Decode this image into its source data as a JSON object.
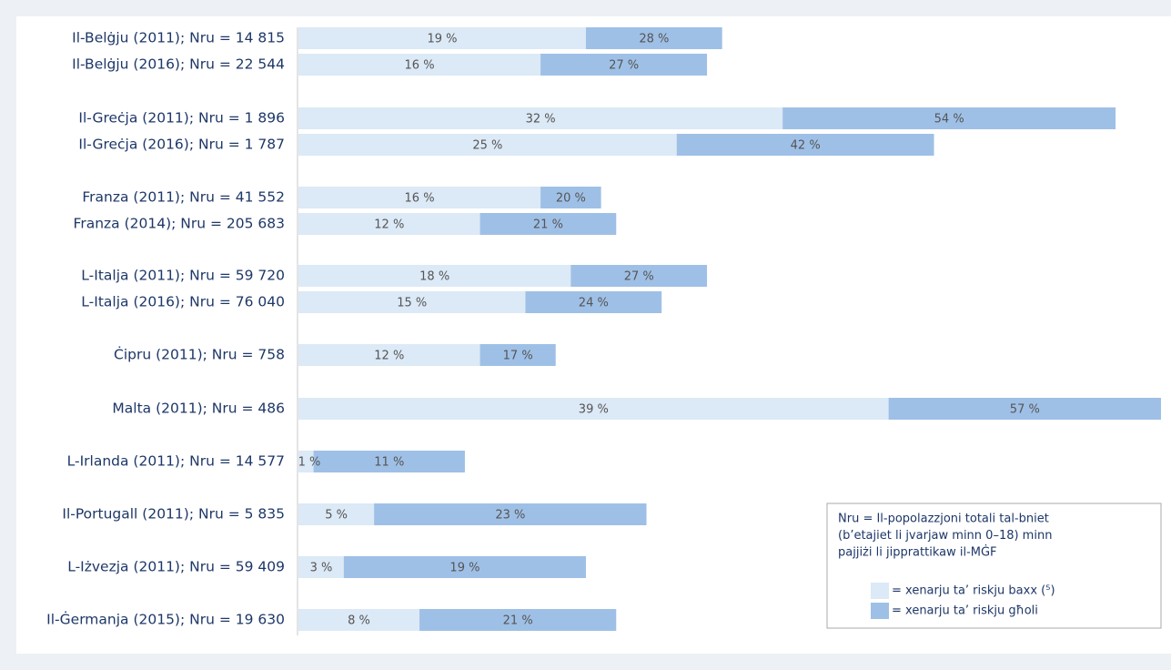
{
  "chart_data": {
    "type": "bar",
    "categories": [
      "Il-Belġju (2011); Nru = 14 815",
      "Il-Belġju (2016); Nru = 22 544",
      "Il-Greċja (2011); Nru = 1 896",
      "Il-Greċja (2016); Nru = 1 787",
      "Franza (2011); Nru = 41 552",
      "Franza (2014); Nru = 205 683",
      "L-Italja (2011); Nru = 59 720",
      "L-Italja (2016); Nru = 76 040",
      "Ċipru (2011); Nru = 758",
      "Malta (2011); Nru = 486",
      "L-Irlanda (2011); Nru = 14 577",
      "Il-Portugall (2011); Nru = 5 835",
      "L-Iżvezja (2011); Nru = 59 409",
      "Il-Ġermanja (2015); Nru = 19 630"
    ],
    "series": [
      {
        "name": "= xenarju ta’ riskju baxx (⁵)",
        "color": "#dce9f6",
        "values": [
          19,
          16,
          32,
          25,
          16,
          12,
          18,
          15,
          12,
          39,
          1,
          5,
          3,
          8
        ],
        "value_labels": [
          "19 %",
          "16 %",
          "32 %",
          "25 %",
          "16 %",
          "12 %",
          "18 %",
          "15 %",
          "12 %",
          "39 %",
          "1 %",
          "5 %",
          "3 %",
          "8 %"
        ]
      },
      {
        "name": "= xenarju ta’ riskju għoli",
        "color": "#9fc0e6",
        "values": [
          28,
          27,
          54,
          42,
          20,
          21,
          27,
          24,
          17,
          57,
          11,
          23,
          19,
          21
        ],
        "value_labels": [
          "28 %",
          "27 %",
          "54 %",
          "42 %",
          "20 %",
          "21 %",
          "27 %",
          "24 %",
          "17 %",
          "57 %",
          "11 %",
          "23 %",
          "19 %",
          "21 %"
        ]
      }
    ],
    "xlim": [
      0,
      57
    ],
    "note": [
      "Nru = Il-popolazzjoni totali tal-bniet",
      "(b’etajiet li jvarjaw minn 0–18) minn",
      "pajjiżi li jipprattikaw il-MĠF"
    ]
  }
}
